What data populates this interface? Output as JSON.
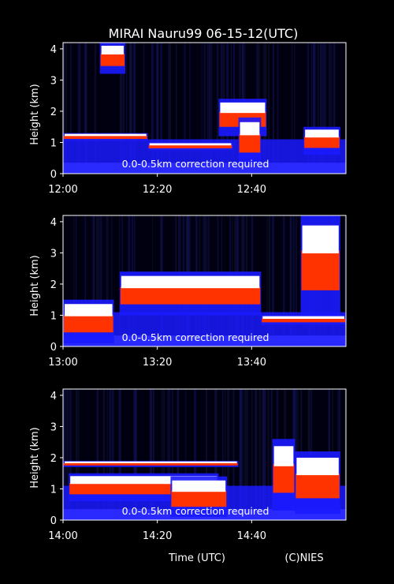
{
  "title": "MIRAI Nauru99 06-15-12(UTC)",
  "xlabel": "Time (UTC)",
  "credit": "(C)NIES",
  "colors": {
    "background": "#000000",
    "text": "#ffffff",
    "low": "#1a1aff",
    "mid": "#ff3300",
    "high": "#ffffff"
  },
  "chart_data": [
    {
      "type": "heatmap",
      "ylabel": "Height (km)",
      "ylim": [
        0,
        4.2
      ],
      "yticks": [
        "0",
        "1",
        "2",
        "3",
        "4"
      ],
      "xticks": [
        "12:00",
        "12:20",
        "12:40"
      ],
      "annotation": "0.0-0.5km correction required",
      "cloud_layers": [
        {
          "t0": 0,
          "t1": 0.3,
          "base": 1.05,
          "top": 1.3
        },
        {
          "t0": 0.13,
          "t1": 0.22,
          "base": 3.2,
          "top": 4.2
        },
        {
          "t0": 0.3,
          "t1": 0.6,
          "base": 0.75,
          "top": 1.0
        },
        {
          "t0": 0.55,
          "t1": 0.72,
          "base": 1.2,
          "top": 2.4
        },
        {
          "t0": 0.62,
          "t1": 0.7,
          "base": 0.3,
          "top": 1.8
        },
        {
          "t0": 0.85,
          "t1": 0.98,
          "base": 0.6,
          "top": 1.5
        }
      ]
    },
    {
      "type": "heatmap",
      "ylabel": "Height (km)",
      "ylim": [
        0,
        4.2
      ],
      "yticks": [
        "0",
        "1",
        "2",
        "3",
        "4"
      ],
      "xticks": [
        "13:00",
        "13:20",
        "13:40"
      ],
      "annotation": "0.0-0.5km correction required",
      "cloud_layers": [
        {
          "t0": 0,
          "t1": 0.18,
          "base": 0.1,
          "top": 1.5
        },
        {
          "t0": 0.2,
          "t1": 0.7,
          "base": 1.0,
          "top": 2.4
        },
        {
          "t0": 0.7,
          "t1": 1.0,
          "base": 0.7,
          "top": 1.0
        },
        {
          "t0": 0.84,
          "t1": 0.98,
          "base": 1.0,
          "top": 4.2
        }
      ]
    },
    {
      "type": "heatmap",
      "ylabel": "Height (km)",
      "ylim": [
        0,
        4.2
      ],
      "yticks": [
        "0",
        "1",
        "2",
        "3",
        "4"
      ],
      "xticks": [
        "14:00",
        "14:20",
        "14:40"
      ],
      "annotation": "0.0-0.5km correction required",
      "cloud_layers": [
        {
          "t0": 0,
          "t1": 0.62,
          "base": 1.7,
          "top": 1.9
        },
        {
          "t0": 0.02,
          "t1": 0.55,
          "base": 0.6,
          "top": 1.5
        },
        {
          "t0": 0.38,
          "t1": 0.58,
          "base": 0.1,
          "top": 1.4
        },
        {
          "t0": 0.74,
          "t1": 0.82,
          "base": 0.3,
          "top": 2.6
        },
        {
          "t0": 0.82,
          "t1": 0.98,
          "base": 0.2,
          "top": 2.2
        }
      ]
    }
  ]
}
